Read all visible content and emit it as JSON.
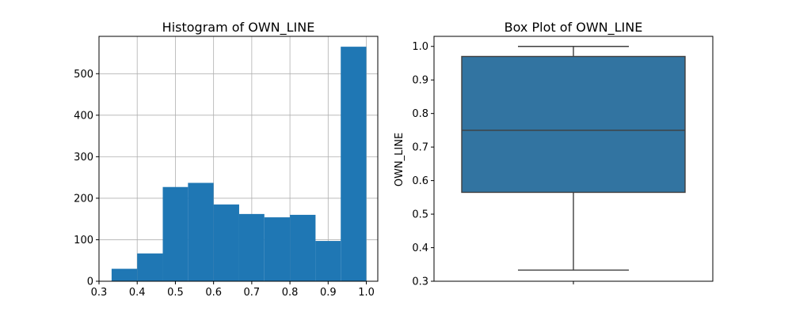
{
  "chart_data": [
    {
      "type": "bar",
      "subtype": "histogram",
      "title": "Histogram of OWN_LINE",
      "xlabel": "",
      "ylabel": "",
      "xlim": [
        0.3,
        1.03
      ],
      "ylim": [
        0,
        590
      ],
      "grid": true,
      "xticks": [
        0.3,
        0.4,
        0.5,
        0.6,
        0.7,
        0.8,
        0.9,
        1.0
      ],
      "xtick_labels": [
        "0.3",
        "0.4",
        "0.5",
        "0.6",
        "0.7",
        "0.8",
        "0.9",
        "1.0"
      ],
      "yticks": [
        0,
        100,
        200,
        300,
        400,
        500
      ],
      "ytick_labels": [
        "0",
        "100",
        "200",
        "300",
        "400",
        "500"
      ],
      "bin_edges": [
        0.333,
        0.4,
        0.467,
        0.533,
        0.6,
        0.667,
        0.733,
        0.8,
        0.867,
        0.933,
        1.0
      ],
      "values": [
        30,
        67,
        227,
        237,
        185,
        162,
        154,
        160,
        97,
        565
      ],
      "color": "#1f77b4"
    },
    {
      "type": "box",
      "title": "Box Plot of OWN_LINE",
      "xlabel": "",
      "ylabel": "OWN_LINE",
      "ylim": [
        0.3,
        1.03
      ],
      "yticks": [
        0.3,
        0.4,
        0.5,
        0.6,
        0.7,
        0.8,
        0.9,
        1.0
      ],
      "ytick_labels": [
        "0.3",
        "0.4",
        "0.5",
        "0.6",
        "0.7",
        "0.8",
        "0.9",
        "1.0"
      ],
      "stats": {
        "whisker_low": 0.333,
        "q1": 0.565,
        "median": 0.75,
        "q3": 0.97,
        "whisker_high": 1.0
      },
      "color": "#3274a1"
    }
  ]
}
